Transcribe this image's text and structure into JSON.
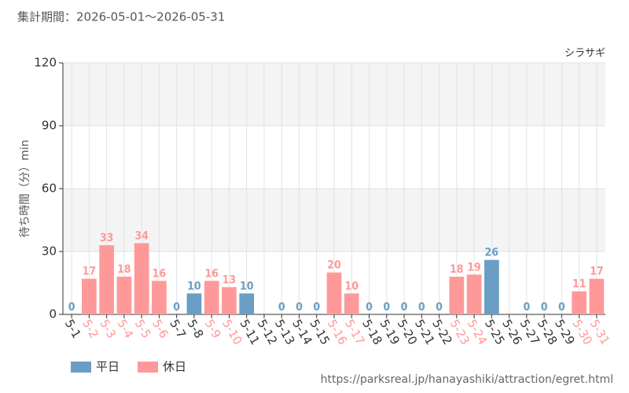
{
  "chart_data": {
    "type": "bar",
    "header": "集計期間：2026-05-01〜2026-05-31",
    "title": "シラサギ",
    "y_label": "待ち時間（分）min",
    "source": "https://parksreal.jp/hanayashiki/attraction/egret.html",
    "categories": [
      "5-1",
      "5-2",
      "5-3",
      "5-4",
      "5-5",
      "5-6",
      "5-7",
      "5-8",
      "5-9",
      "5-10",
      "5-11",
      "5-12",
      "5-13",
      "5-14",
      "5-15",
      "5-16",
      "5-17",
      "5-18",
      "5-19",
      "5-20",
      "5-21",
      "5-22",
      "5-23",
      "5-24",
      "5-25",
      "5-26",
      "5-27",
      "5-28",
      "5-29",
      "5-30",
      "5-31"
    ],
    "series": [
      {
        "name": "平日",
        "color": "#6a9ec5",
        "values": [
          0,
          null,
          null,
          null,
          null,
          null,
          0,
          10,
          null,
          null,
          10,
          null,
          0,
          0,
          0,
          null,
          null,
          0,
          0,
          0,
          0,
          0,
          null,
          null,
          26,
          null,
          0,
          0,
          0,
          null,
          null
        ]
      },
      {
        "name": "休日",
        "color": "#ff9999",
        "values": [
          null,
          17,
          33,
          18,
          34,
          16,
          null,
          null,
          16,
          13,
          null,
          null,
          null,
          null,
          null,
          20,
          10,
          null,
          null,
          null,
          null,
          null,
          18,
          19,
          null,
          null,
          null,
          null,
          null,
          11,
          17
        ]
      }
    ],
    "ylim": [
      0,
      120
    ],
    "yticks": [
      0,
      30,
      60,
      90,
      120
    ],
    "grid": true
  }
}
